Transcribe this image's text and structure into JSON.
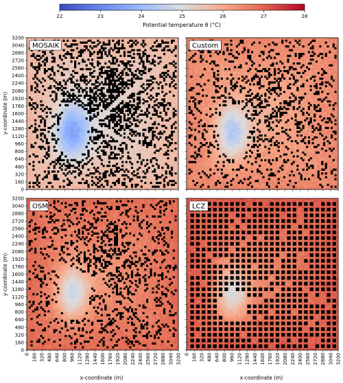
{
  "chart_data": {
    "type": "heatmap",
    "colorbar": {
      "label": "Potential temperature θ (°C)",
      "ticks": [
        22,
        23,
        24,
        25,
        26,
        27,
        28
      ],
      "range": [
        22,
        28
      ],
      "colormap": "coolwarm",
      "color_low": "#3b4cc0",
      "color_mid": "#dddddd",
      "color_high": "#b40426"
    },
    "xlabel": "x-coordinate (m)",
    "ylabel": "y-coordinate (m)",
    "xlim": [
      0,
      3200
    ],
    "ylim": [
      0,
      3200
    ],
    "x_ticks": [
      "0",
      "160",
      "320",
      "480",
      "640",
      "800",
      "960",
      "1120",
      "1280",
      "1440",
      "1600",
      "1760",
      "1920",
      "2080",
      "2240",
      "2400",
      "2560",
      "2720",
      "2880",
      "3040",
      "3200"
    ],
    "y_ticks": [
      "0",
      "160",
      "320",
      "480",
      "640",
      "800",
      "960",
      "1120",
      "1280",
      "1440",
      "1600",
      "1760",
      "1920",
      "2080",
      "2240",
      "2400",
      "2560",
      "2720",
      "2880",
      "3040",
      "3200"
    ],
    "panels": [
      {
        "title": "MOSAIK",
        "building_color": "#000000",
        "building_density": "high",
        "typical_theta": 25.4
      },
      {
        "title": "Custom",
        "building_color": "#000000",
        "building_density": "medium",
        "typical_theta": 26.2
      },
      {
        "title": "OSM",
        "building_color": "#000000",
        "building_density": "medium",
        "typical_theta": 26.6
      },
      {
        "title": "LCZ",
        "building_color": "#000000",
        "building_density": "grid",
        "typical_theta": 26.8
      }
    ]
  }
}
